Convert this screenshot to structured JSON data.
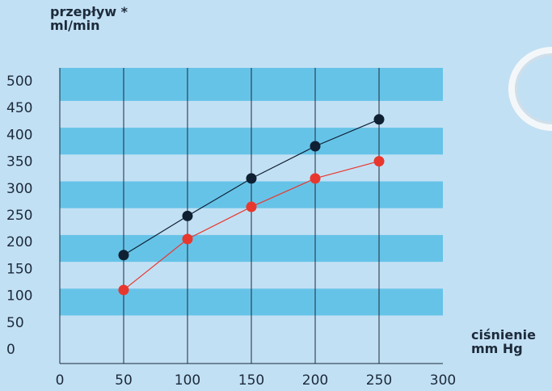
{
  "chart_data": {
    "type": "line",
    "ylabel_line1": "przepływ *",
    "ylabel_line2": "ml/min",
    "xlabel_line1": "ciśnienie",
    "xlabel_line2": "mm Hg",
    "x_ticks": [
      "0",
      "50",
      "100",
      "150",
      "200",
      "250",
      "300"
    ],
    "y_ticks": [
      "0",
      "50",
      "100",
      "150",
      "200",
      "250",
      "300",
      "350",
      "400",
      "450",
      "500"
    ],
    "xlim": [
      0,
      300
    ],
    "ylim": [
      0,
      500
    ],
    "x": [
      50,
      100,
      150,
      200,
      250
    ],
    "series": [
      {
        "values": [
          175,
          248,
          318,
          378,
          428
        ],
        "color": "#0f2033"
      },
      {
        "values": [
          110,
          205,
          265,
          318,
          350
        ],
        "color": "#e8382e"
      }
    ],
    "band_color": "#66c3e8",
    "grid": true
  }
}
